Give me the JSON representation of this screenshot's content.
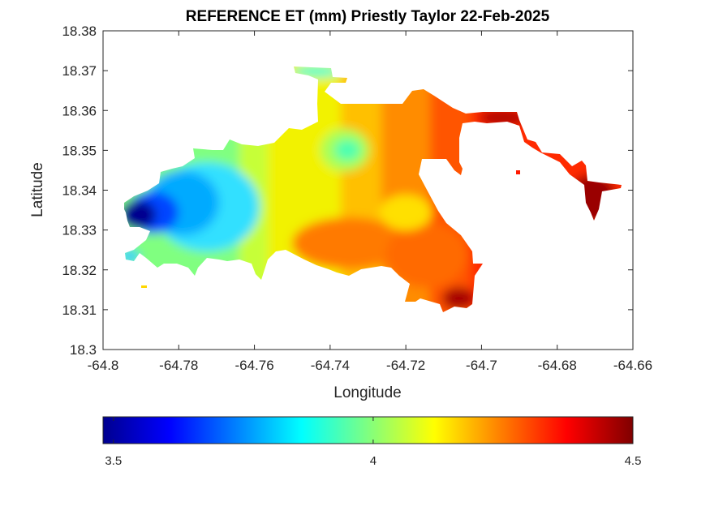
{
  "chart_data": {
    "type": "heatmap",
    "title": "REFERENCE ET (mm) Priestly Taylor 22-Feb-2025",
    "xlabel": "Longitude",
    "ylabel": "Latitude",
    "xlim": [
      -64.8,
      -64.66
    ],
    "ylim": [
      18.3,
      18.38
    ],
    "x_ticks": [
      "-64.8",
      "-64.78",
      "-64.76",
      "-64.74",
      "-64.72",
      "-64.7",
      "-64.68",
      "-64.66"
    ],
    "y_ticks": [
      "18.3",
      "18.31",
      "18.32",
      "18.33",
      "18.34",
      "18.35",
      "18.36",
      "18.37",
      "18.38"
    ],
    "colormap": "jet",
    "colorbar": {
      "range": [
        3.48,
        4.5
      ],
      "tick_labels": [
        "3.5",
        "4",
        "4.5"
      ],
      "tick_values": [
        3.5,
        4.0,
        4.5
      ],
      "placement": "bottom"
    },
    "grid": false,
    "values_summary": {
      "west_min": 3.5,
      "west_plateau": 3.75,
      "center": 4.05,
      "central_local_min": 3.9,
      "center_east": 4.3,
      "east": 4.45,
      "east_max": 4.5
    }
  }
}
